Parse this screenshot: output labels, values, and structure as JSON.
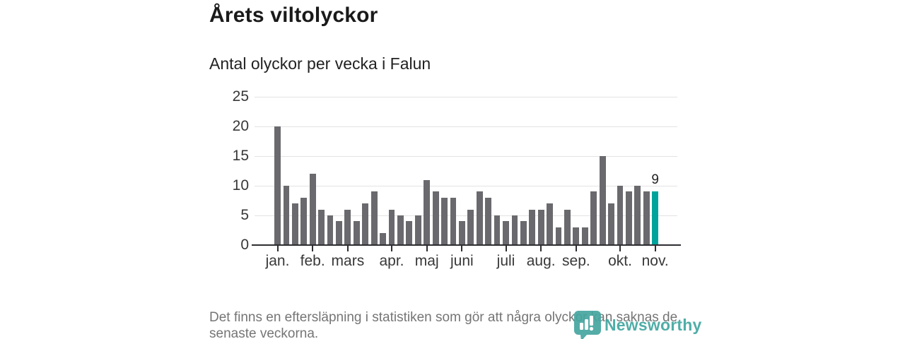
{
  "header": {
    "title": "Årets viltolyckor",
    "subtitle": "Antal olyckor per vecka i Falun"
  },
  "chart_data": {
    "type": "bar",
    "title": "Årets viltolyckor",
    "subtitle": "Antal olyckor per vecka i Falun",
    "xlabel": "",
    "ylabel": "",
    "x_unit": "vecka",
    "weeks": [
      1,
      2,
      3,
      4,
      5,
      6,
      7,
      8,
      9,
      10,
      11,
      12,
      13,
      14,
      15,
      16,
      17,
      18,
      19,
      20,
      21,
      22,
      23,
      24,
      25,
      26,
      27,
      28,
      29,
      30,
      31,
      32,
      33,
      34,
      35,
      36,
      37,
      38,
      39,
      40,
      41,
      42,
      43,
      44
    ],
    "values": [
      20,
      10,
      7,
      8,
      12,
      6,
      5,
      4,
      6,
      4,
      7,
      9,
      2,
      6,
      5,
      4,
      5,
      11,
      9,
      8,
      8,
      4,
      6,
      9,
      8,
      5,
      4,
      5,
      4,
      6,
      6,
      7,
      3,
      6,
      3,
      3,
      9,
      15,
      7,
      10,
      9,
      10,
      9,
      9
    ],
    "highlight_index": 43,
    "annotation": {
      "text": "9",
      "index": 43
    },
    "months": [
      {
        "label": "jan.",
        "week_index": 0
      },
      {
        "label": "feb.",
        "week_index": 4
      },
      {
        "label": "mars",
        "week_index": 8
      },
      {
        "label": "apr.",
        "week_index": 13
      },
      {
        "label": "maj",
        "week_index": 17
      },
      {
        "label": "juni",
        "week_index": 21
      },
      {
        "label": "juli",
        "week_index": 26
      },
      {
        "label": "aug.",
        "week_index": 30
      },
      {
        "label": "sep.",
        "week_index": 34
      },
      {
        "label": "okt.",
        "week_index": 39
      },
      {
        "label": "nov.",
        "week_index": 43
      }
    ],
    "yticks": [
      0,
      5,
      10,
      15,
      20,
      25
    ],
    "ylim": [
      0,
      25
    ],
    "grid": true,
    "colors": {
      "bar": "#6a6a6e",
      "highlight": "#00a39b"
    }
  },
  "footnote": {
    "lines": [
      "Det finns en eftersläpning i statistiken som gör att några olyckor kan saknas de",
      "senaste veckorna."
    ]
  },
  "brand": {
    "name": "Newsworthy"
  }
}
